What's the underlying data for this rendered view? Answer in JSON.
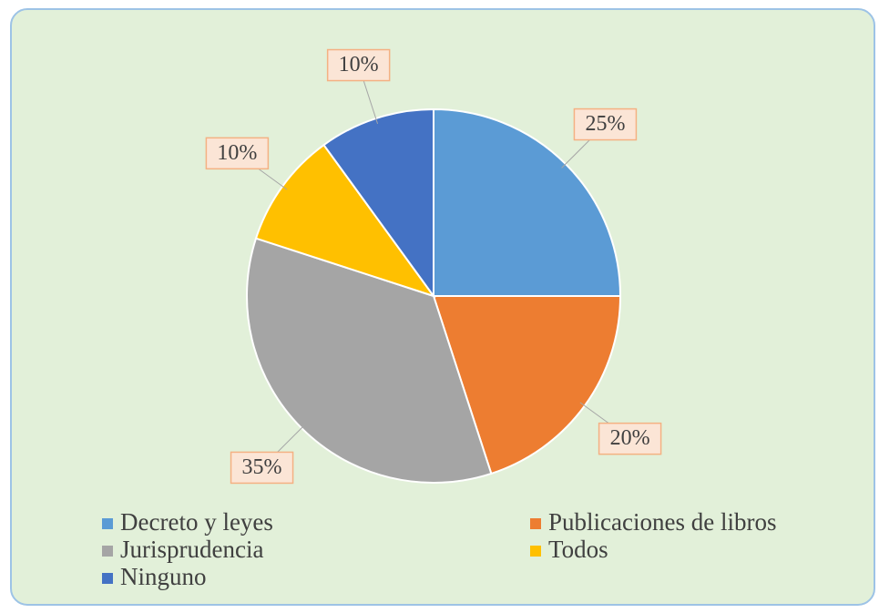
{
  "chart_data": {
    "type": "pie",
    "categories": [
      "Decreto y leyes",
      "Publicaciones de libros",
      "Jurisprudencia",
      "Todos",
      "Ninguno"
    ],
    "values": [
      25,
      20,
      35,
      10,
      10
    ],
    "value_labels": [
      "25%",
      "20%",
      "35%",
      "10%",
      "10%"
    ],
    "colors": [
      "#5b9bd5",
      "#ed7d31",
      "#a5a5a5",
      "#ffc000",
      "#4472c4"
    ],
    "legend": "bottom"
  }
}
